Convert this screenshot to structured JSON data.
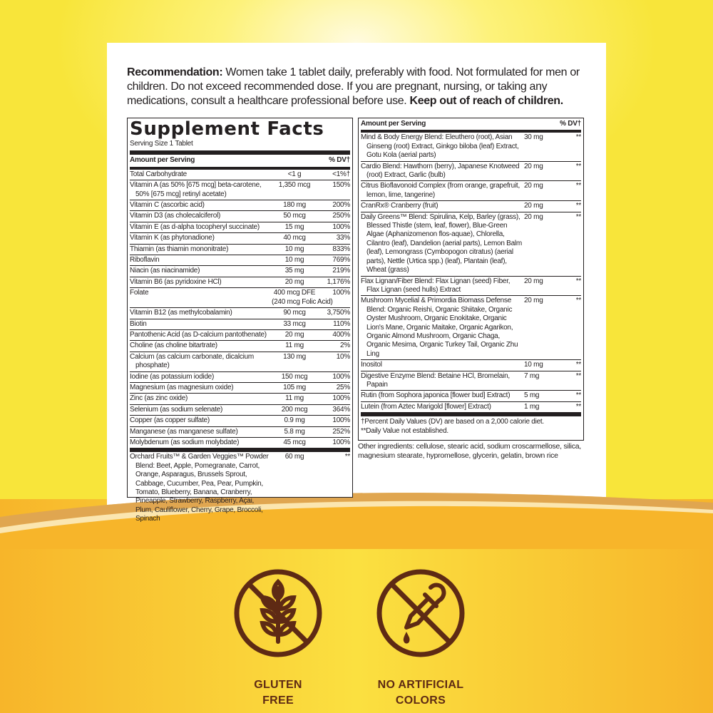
{
  "colors": {
    "brand_brown": "#5e2a14",
    "background_yellow": "#f8e53a",
    "bottom_orange": "#f7b52a"
  },
  "recommendation": {
    "label": "Recommendation:",
    "text": " Women take 1 tablet daily, preferably with food. Not formulated for men or children. Do not exceed recommended dose. If you are pregnant, nursing, or taking any medications, consult a healthcare professional before use. ",
    "warning": "Keep out of reach of children."
  },
  "facts": {
    "title": "Supplement Facts",
    "serving": "Serving Size 1 Tablet",
    "amount_header": "Amount per Serving",
    "dv_header": "% DV†",
    "left_rows": [
      {
        "name": "Total Carbohydrate",
        "amount": "<1 g",
        "dv": "<1%†"
      },
      {
        "name": "Vitamin A (as 50% [675 mcg] beta-carotene, 50% [675 mcg] retinyl acetate)",
        "amount": "1,350 mcg",
        "dv": "150%"
      },
      {
        "name": "Vitamin C (ascorbic acid)",
        "amount": "180 mg",
        "dv": "200%"
      },
      {
        "name": "Vitamin D3 (as cholecalciferol)",
        "amount": "50 mcg",
        "dv": "250%"
      },
      {
        "name": "Vitamin E (as d-alpha tocopheryl succinate)",
        "amount": "15 mg",
        "dv": "100%"
      },
      {
        "name": "Vitamin K (as phytonadione)",
        "amount": "40 mcg",
        "dv": "33%"
      },
      {
        "name": "Thiamin (as thiamin mononitrate)",
        "amount": "10 mg",
        "dv": "833%"
      },
      {
        "name": "Riboflavin",
        "amount": "10 mg",
        "dv": "769%"
      },
      {
        "name": "Niacin (as niacinamide)",
        "amount": "35 mg",
        "dv": "219%"
      },
      {
        "name": "Vitamin B6 (as pyridoxine HCl)",
        "amount": "20 mg",
        "dv": "1,176%"
      },
      {
        "name": "Folate",
        "amount": "400 mcg DFE",
        "amount_note": "(240 mcg Folic Acid)",
        "dv": "100%"
      },
      {
        "name": "Vitamin B12 (as methylcobalamin)",
        "amount": "90 mcg",
        "dv": "3,750%"
      },
      {
        "name": "Biotin",
        "amount": "33 mcg",
        "dv": "110%"
      },
      {
        "name": "Pantothenic Acid (as D-calcium pantothenate)",
        "amount": "20 mg",
        "dv": "400%"
      },
      {
        "name": "Choline (as choline bitartrate)",
        "amount": "11 mg",
        "dv": "2%"
      },
      {
        "name": "Calcium (as calcium carbonate, dicalcium phosphate)",
        "amount": "130 mg",
        "dv": "10%"
      },
      {
        "name": "Iodine (as potassium iodide)",
        "amount": "150 mcg",
        "dv": "100%"
      },
      {
        "name": "Magnesium (as magnesium oxide)",
        "amount": "105 mg",
        "dv": "25%"
      },
      {
        "name": "Zinc (as zinc oxide)",
        "amount": "11 mg",
        "dv": "100%"
      },
      {
        "name": "Selenium (as sodium selenate)",
        "amount": "200 mcg",
        "dv": "364%"
      },
      {
        "name": "Copper (as copper sulfate)",
        "amount": "0.9 mg",
        "dv": "100%"
      },
      {
        "name": "Manganese (as manganese sulfate)",
        "amount": "5.8 mg",
        "dv": "252%"
      },
      {
        "name": "Molybdenum (as sodium molybdate)",
        "amount": "45 mcg",
        "dv": "100%"
      }
    ],
    "left_blend": [
      {
        "name": "Orchard Fruits™ & Garden Veggies™ Powder Blend: Beet, Apple, Pomegranate, Carrot, Orange, Asparagus, Brussels Sprout, Cabbage, Cucumber, Pea, Pear, Pumpkin, Tomato, Blueberry, Banana, Cranberry, Pineapple, Strawberry, Raspberry, Açai, Plum, Cauliflower, Cherry, Grape, Broccoli, Spinach",
        "amount": "60 mg",
        "dv": "**"
      }
    ],
    "right_rows": [
      {
        "name": "Mind & Body Energy Blend: Eleuthero (root), Asian Ginseng (root) Extract, Ginkgo biloba (leaf) Extract, Gotu Kola (aerial parts)",
        "amount": "30 mg",
        "dv": "**"
      },
      {
        "name": "Cardio Blend: Hawthorn (berry), Japanese Knotweed (root) Extract, Garlic (bulb)",
        "amount": "20 mg",
        "dv": "**"
      },
      {
        "name": "Citrus Bioflavonoid Complex (from orange, grapefruit, lemon, lime, tangerine)",
        "amount": "20 mg",
        "dv": "**"
      },
      {
        "name": "CranRx® Cranberry (fruit)",
        "amount": "20 mg",
        "dv": "**"
      },
      {
        "name": "Daily Greens™ Blend: Spirulina, Kelp, Barley (grass), Blessed Thistle (stem, leaf, flower), Blue-Green Algae (Aphanizomenon flos-aquae), Chlorella, Cilantro (leaf), Dandelion (aerial parts), Lemon Balm (leaf), Lemongrass (Cymbopogon citratus) (aerial parts), Nettle (Urtica spp.) (leaf), Plantain (leaf), Wheat (grass)",
        "amount": "20 mg",
        "dv": "**"
      },
      {
        "name": "Flax Lignan/Fiber Blend: Flax Lignan (seed) Fiber, Flax Lignan (seed hulls) Extract",
        "amount": "20 mg",
        "dv": "**"
      },
      {
        "name": "Mushroom Mycelial & Primordia Biomass Defense Blend: Organic Reishi, Organic Shiitake, Organic Oyster Mushroom, Organic Enokitake, Organic Lion's Mane, Organic Maitake, Organic Agarikon, Organic Almond Mushroom, Organic Chaga, Organic Mesima, Organic Turkey Tail, Organic Zhu Ling",
        "amount": "20 mg",
        "dv": "**"
      },
      {
        "name": "Inositol",
        "amount": "10 mg",
        "dv": "**"
      },
      {
        "name": "Digestive Enzyme Blend: Betaine HCl, Bromelain, Papain",
        "amount": "7 mg",
        "dv": "**"
      },
      {
        "name": "Rutin (from Sophora japonica [flower bud] Extract)",
        "amount": "5 mg",
        "dv": "**"
      },
      {
        "name": "Lutein (from Aztec Marigold [flower] Extract)",
        "amount": "1 mg",
        "dv": "**"
      }
    ],
    "footnote_dv": "†Percent Daily Values (DV) are based on a 2,000 calorie diet.",
    "footnote_na": "**Daily Value not established."
  },
  "other_ingredients": "Other ingredients: cellulose, stearic acid, sodium croscarmellose, silica, magnesium stearate, hypromellose, glycerin, gelatin, brown rice",
  "badges": [
    {
      "icon": "no-wheat-icon",
      "line1": "GLUTEN",
      "line2": "FREE"
    },
    {
      "icon": "no-dropper-icon",
      "line1": "NO ARTIFICIAL",
      "line2": "COLORS"
    }
  ]
}
